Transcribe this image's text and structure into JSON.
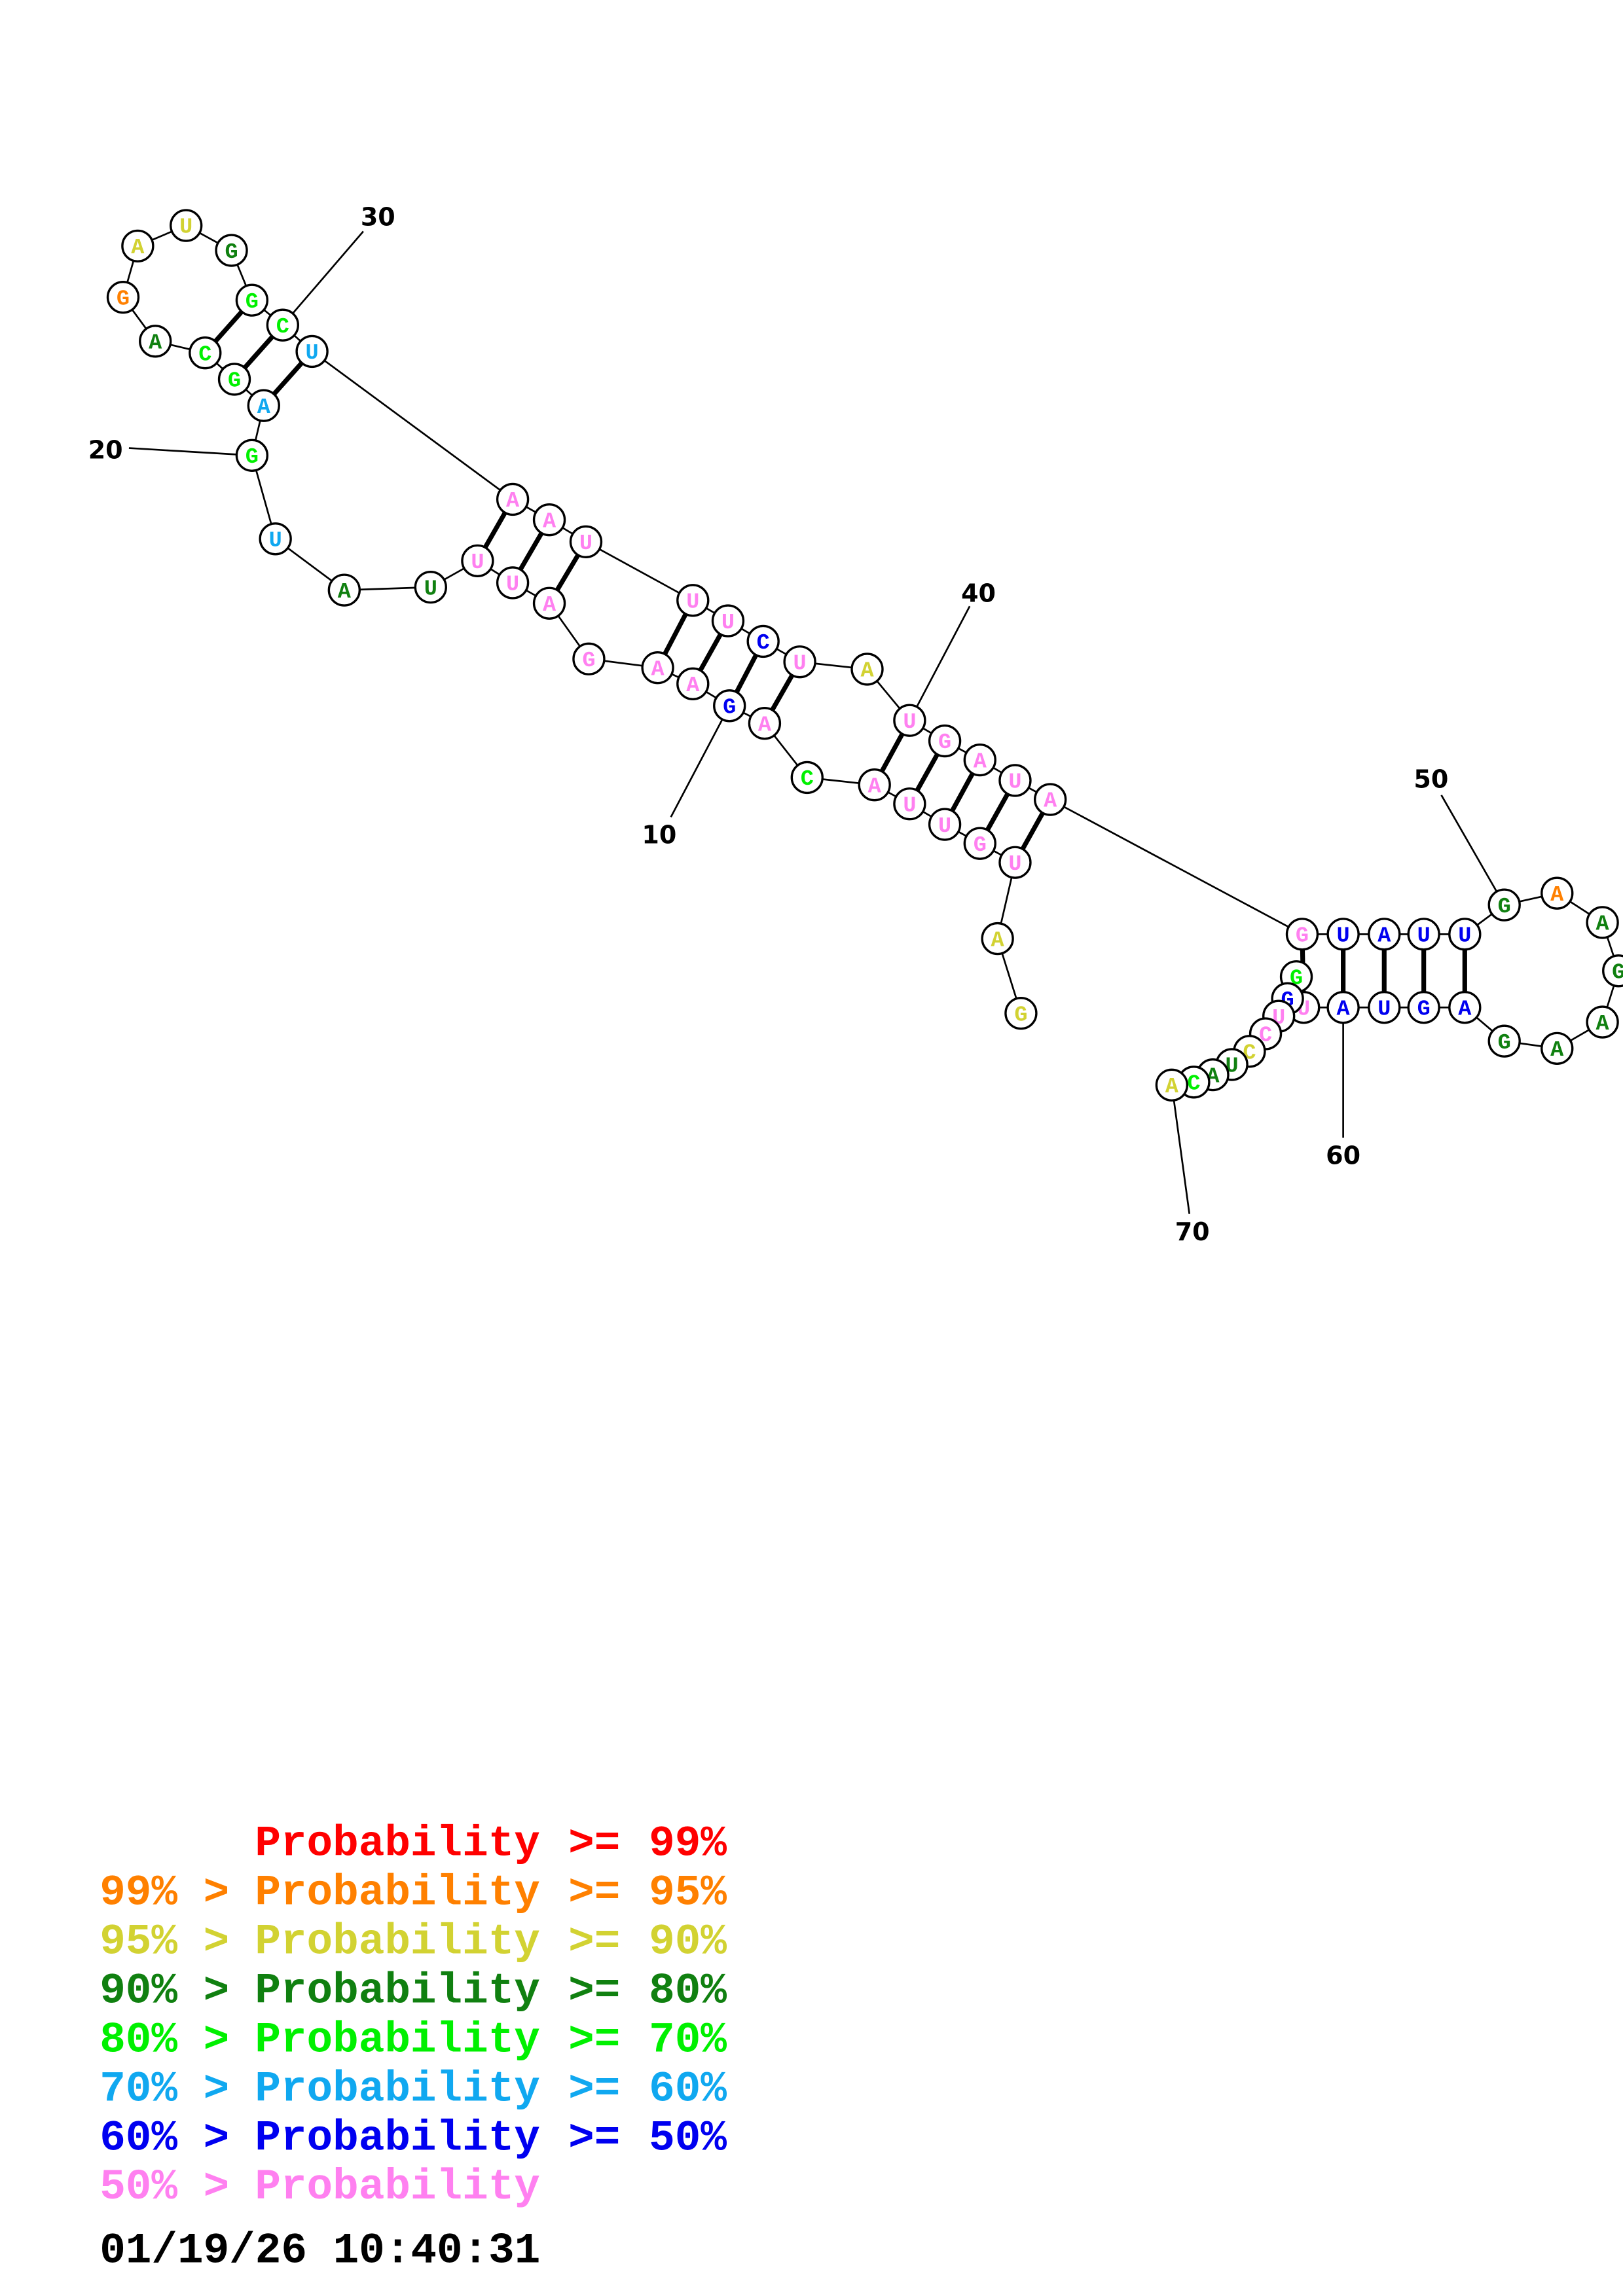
{
  "structure": {
    "sequence": [
      "G",
      "A",
      "U",
      "G",
      "U",
      "U",
      "A",
      "C",
      "A",
      "G",
      "A",
      "A",
      "G",
      "A",
      "U",
      "U",
      "U",
      "A",
      "U",
      "G",
      "A",
      "G",
      "C",
      "A",
      "G",
      "A",
      "U",
      "G",
      "G",
      "C",
      "U",
      "A",
      "A",
      "U",
      "U",
      "U",
      "C",
      "U",
      "A",
      "U",
      "G",
      "A",
      "U",
      "A",
      "G",
      "U",
      "A",
      "U",
      "U",
      "G",
      "A",
      "A",
      "G",
      "A",
      "A",
      "G",
      "A",
      "G",
      "U",
      "A",
      "U",
      "G",
      "G",
      "U",
      "C",
      "C",
      "U",
      "A",
      "C",
      "A"
    ],
    "probability_class": [
      "yellow",
      "yellow",
      "pink",
      "pink",
      "pink",
      "pink",
      "pink",
      "green",
      "pink",
      "blue",
      "pink",
      "pink",
      "pink",
      "pink",
      "pink",
      "pink",
      "darkgreen",
      "darkgreen",
      "cyan",
      "green",
      "cyan",
      "green",
      "green",
      "darkgreen",
      "orange",
      "yellow",
      "yellow",
      "darkgreen",
      "green",
      "green",
      "cyan",
      "pink",
      "pink",
      "pink",
      "pink",
      "pink",
      "blue",
      "pink",
      "yellow",
      "pink",
      "pink",
      "pink",
      "pink",
      "pink",
      "pink",
      "blue",
      "blue",
      "blue",
      "blue",
      "darkgreen",
      "orange",
      "darkgreen",
      "darkgreen",
      "darkgreen",
      "darkgreen",
      "darkgreen",
      "blue",
      "blue",
      "blue",
      "blue",
      "pink",
      "green",
      "blue",
      "pink",
      "pink",
      "yellow",
      "darkgreen",
      "darkgreen",
      "green",
      "yellow"
    ],
    "pairs": [
      [
        3,
        44
      ],
      [
        4,
        43
      ],
      [
        5,
        42
      ],
      [
        6,
        41
      ],
      [
        7,
        40
      ],
      [
        9,
        38
      ],
      [
        10,
        37
      ],
      [
        11,
        36
      ],
      [
        12,
        35
      ],
      [
        14,
        34
      ],
      [
        15,
        33
      ],
      [
        16,
        32
      ],
      [
        21,
        31
      ],
      [
        22,
        30
      ],
      [
        23,
        29
      ],
      [
        45,
        61
      ],
      [
        46,
        60
      ],
      [
        47,
        59
      ],
      [
        48,
        58
      ],
      [
        49,
        57
      ]
    ],
    "position_labels": [
      "10",
      "20",
      "30",
      "40",
      "50",
      "60",
      "70"
    ]
  },
  "colors": {
    "red": "#ff0000",
    "orange": "#ff8000",
    "yellow": "#d2d232",
    "darkgreen": "#108010",
    "green": "#00f000",
    "cyan": "#10a8f0",
    "blue": "#0000f0",
    "pink": "#ff80f0"
  },
  "legend": [
    {
      "left": "",
      "mid": "Probability",
      "op": ">=",
      "right": "99%",
      "color": "red"
    },
    {
      "left": "99% >",
      "mid": "Probability",
      "op": ">=",
      "right": "95%",
      "color": "orange"
    },
    {
      "left": "95% >",
      "mid": "Probability",
      "op": ">=",
      "right": "90%",
      "color": "yellow"
    },
    {
      "left": "90% >",
      "mid": "Probability",
      "op": ">=",
      "right": "80%",
      "color": "darkgreen"
    },
    {
      "left": "80% >",
      "mid": "Probability",
      "op": ">=",
      "right": "70%",
      "color": "green"
    },
    {
      "left": "70% >",
      "mid": "Probability",
      "op": ">=",
      "right": "60%",
      "color": "cyan"
    },
    {
      "left": "60% >",
      "mid": "Probability",
      "op": ">=",
      "right": "50%",
      "color": "blue"
    },
    {
      "left": "50% >",
      "mid": "Probability",
      "op": "",
      "right": "",
      "color": "pink"
    }
  ],
  "timestamp": "01/19/26 10:40:31"
}
